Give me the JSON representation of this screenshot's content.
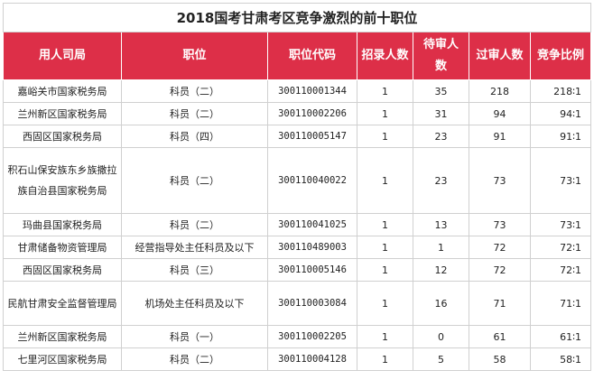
{
  "table": {
    "title": "2018国考甘肃考区竞争激烈的前十职位",
    "headers": [
      "用人司局",
      "职位",
      "职位代码",
      "招录人数",
      "待审人数",
      "过审人数",
      "竞争比例"
    ],
    "rows": [
      {
        "dept": "嘉峪关市国家税务局",
        "position": "科员（二）",
        "code": "300110001344",
        "recruit": "1",
        "pending": "35",
        "approved": "218",
        "ratio": "218∶1"
      },
      {
        "dept": "兰州新区国家税务局",
        "position": "科员（二）",
        "code": "300110002206",
        "recruit": "1",
        "pending": "31",
        "approved": "94",
        "ratio": "94∶1"
      },
      {
        "dept": "西固区国家税务局",
        "position": "科员（四）",
        "code": "300110005147",
        "recruit": "1",
        "pending": "23",
        "approved": "91",
        "ratio": "91∶1"
      },
      {
        "dept": "积石山保安族东乡族撒拉族自治县国家税务局",
        "position": "科员（二）",
        "code": "300110040022",
        "recruit": "1",
        "pending": "23",
        "approved": "73",
        "ratio": "73∶1"
      },
      {
        "dept": "玛曲县国家税务局",
        "position": "科员（二）",
        "code": "300110041025",
        "recruit": "1",
        "pending": "13",
        "approved": "73",
        "ratio": "73∶1"
      },
      {
        "dept": "甘肃储备物资管理局",
        "position": "经营指导处主任科员及以下",
        "code": "300110489003",
        "recruit": "1",
        "pending": "1",
        "approved": "72",
        "ratio": "72∶1"
      },
      {
        "dept": "西固区国家税务局",
        "position": "科员（三）",
        "code": "300110005146",
        "recruit": "1",
        "pending": "12",
        "approved": "72",
        "ratio": "72∶1"
      },
      {
        "dept": "民航甘肃安全监督管理局",
        "position": "机场处主任科员及以下",
        "code": "300110003084",
        "recruit": "1",
        "pending": "16",
        "approved": "71",
        "ratio": "71∶1"
      },
      {
        "dept": "兰州新区国家税务局",
        "position": "科员（一）",
        "code": "300110002205",
        "recruit": "1",
        "pending": "0",
        "approved": "61",
        "ratio": "61∶1"
      },
      {
        "dept": "七里河区国家税务局",
        "position": "科员（二）",
        "code": "300110004128",
        "recruit": "1",
        "pending": "5",
        "approved": "58",
        "ratio": "58∶1"
      }
    ]
  }
}
